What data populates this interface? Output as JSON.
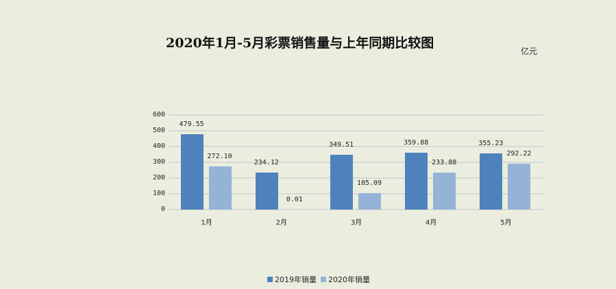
{
  "chart_data": {
    "type": "bar",
    "title": "2020年1月-5月彩票销售量与上年同期比较图",
    "unit_label": "亿元",
    "xlabel": "",
    "ylabel": "",
    "ylim": [
      0,
      600
    ],
    "yticks": [
      0,
      100,
      200,
      300,
      400,
      500,
      600
    ],
    "categories": [
      "1月",
      "2月",
      "3月",
      "4月",
      "5月"
    ],
    "series": [
      {
        "name": "2019年销量",
        "color": "#4f81bd",
        "values": [
          479.55,
          234.12,
          349.51,
          359.88,
          355.23
        ],
        "labels": [
          "479.55",
          "234.12",
          "349.51",
          "359.88",
          "355.23"
        ]
      },
      {
        "name": "2020年销量",
        "color": "#95b3d7",
        "values": [
          272.1,
          0.01,
          105.09,
          233.88,
          292.22
        ],
        "labels": [
          "272.10",
          "0.01",
          "105.09",
          "233.88",
          "292.22"
        ]
      }
    ],
    "grid": true,
    "legend_position": "bottom"
  }
}
